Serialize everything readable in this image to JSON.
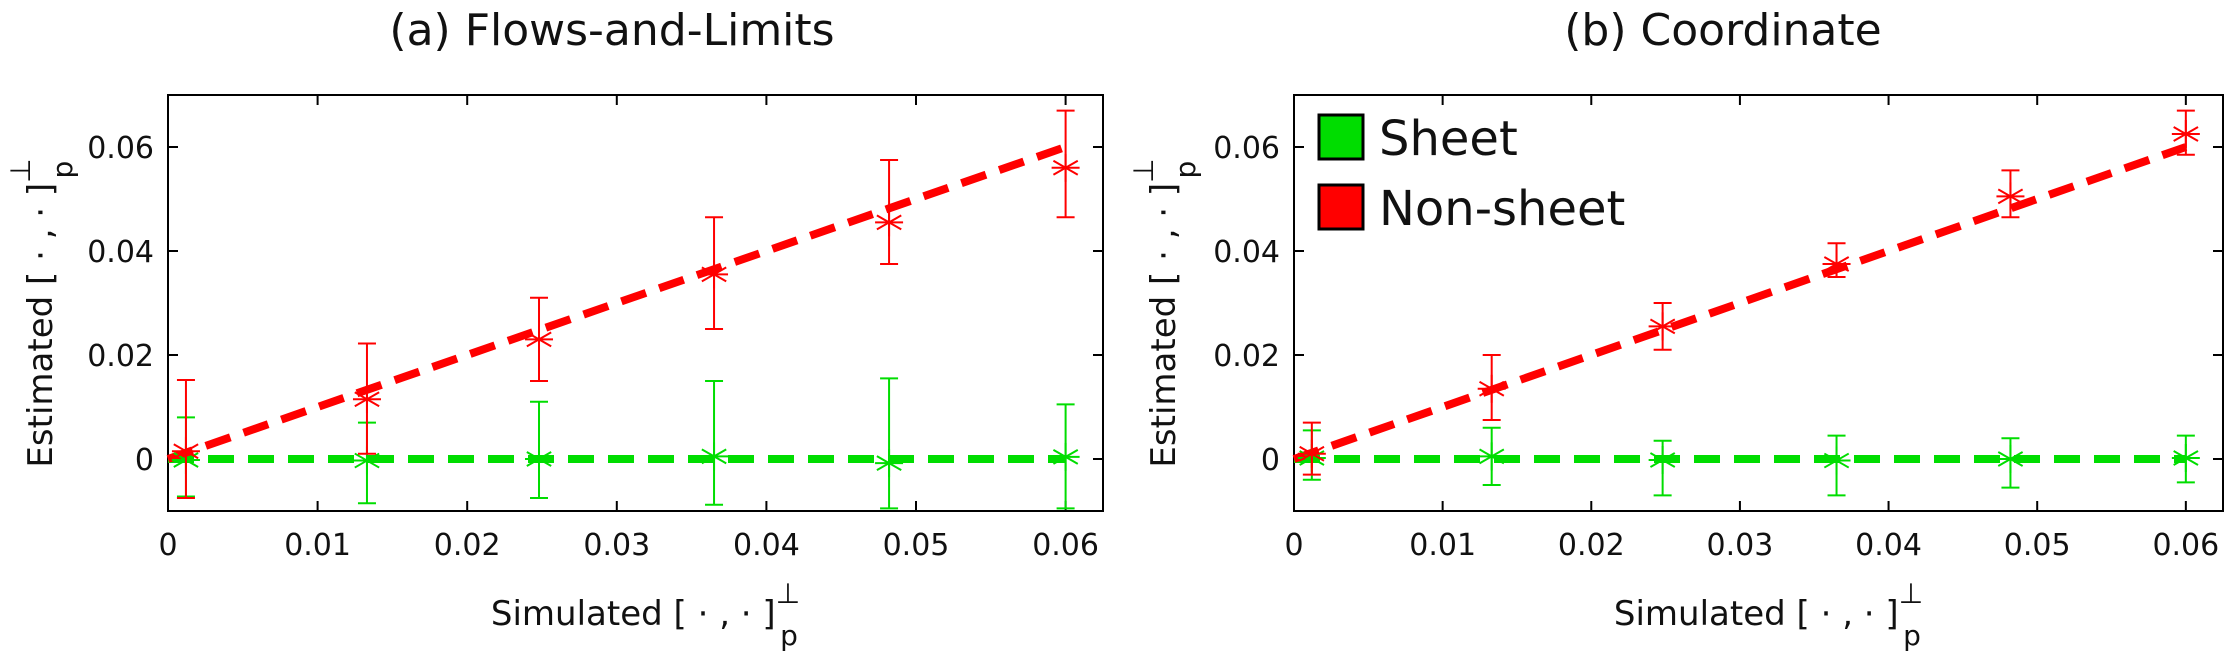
{
  "chart_data": [
    {
      "type": "scatter",
      "title": "(a) Flows-and-Limits",
      "xlabel": "Simulated [ · , · ]",
      "xlabel_sup": "⊥",
      "xlabel_sub": "p",
      "ylabel": "Estimated [ · , · ]",
      "ylabel_sup": "⊥",
      "ylabel_sub": "p",
      "xlim": [
        0,
        0.0625
      ],
      "ylim": [
        -0.01,
        0.07
      ],
      "xticks": [
        0,
        0.01,
        0.02,
        0.03,
        0.04,
        0.05,
        0.06
      ],
      "xtick_labels": [
        "0",
        "0.01",
        "0.02",
        "0.03",
        "0.04",
        "0.05",
        "0.06"
      ],
      "yticks": [
        0,
        0.02,
        0.04,
        0.06
      ],
      "ytick_labels": [
        "0",
        "0.02",
        "0.04",
        "0.06"
      ],
      "series": [
        {
          "name": "Sheet",
          "color": "#00dd00",
          "x": [
            0.0012,
            0.0133,
            0.0248,
            0.0365,
            0.0482,
            0.06
          ],
          "y": [
            -0.0002,
            -0.0003,
            0.0,
            0.0005,
            -0.0008,
            0.0004
          ],
          "err_low": [
            -0.0072,
            -0.0085,
            -0.0075,
            -0.0088,
            -0.0095,
            -0.0095
          ],
          "err_high": [
            0.008,
            0.007,
            0.011,
            0.015,
            0.0155,
            0.0105
          ],
          "fit": [
            [
              0,
              0
            ],
            [
              0.06,
              0
            ]
          ]
        },
        {
          "name": "Non-sheet",
          "color": "#ff0000",
          "x": [
            0.0012,
            0.0133,
            0.0248,
            0.0365,
            0.0482,
            0.06
          ],
          "y": [
            0.0015,
            0.0115,
            0.023,
            0.0355,
            0.0455,
            0.056
          ],
          "err_low": [
            -0.0075,
            0.001,
            0.015,
            0.025,
            0.0375,
            0.0465
          ],
          "err_high": [
            0.0152,
            0.0222,
            0.031,
            0.0465,
            0.0575,
            0.067
          ],
          "fit": [
            [
              0,
              0
            ],
            [
              0.06,
              0.06
            ]
          ]
        }
      ]
    },
    {
      "type": "scatter",
      "title": "(b) Coordinate",
      "xlabel": "Simulated [ · , · ]",
      "xlabel_sup": "⊥",
      "xlabel_sub": "p",
      "ylabel": "Estimated [ · , · ]",
      "ylabel_sup": "⊥",
      "ylabel_sub": "p",
      "xlim": [
        0,
        0.0625
      ],
      "ylim": [
        -0.01,
        0.07
      ],
      "xticks": [
        0,
        0.01,
        0.02,
        0.03,
        0.04,
        0.05,
        0.06
      ],
      "xtick_labels": [
        "0",
        "0.01",
        "0.02",
        "0.03",
        "0.04",
        "0.05",
        "0.06"
      ],
      "yticks": [
        0,
        0.02,
        0.04,
        0.06
      ],
      "ytick_labels": [
        "0",
        "0.02",
        "0.04",
        "0.06"
      ],
      "legend": {
        "placement": "top-left",
        "entries": [
          "Sheet",
          "Non-sheet"
        ]
      },
      "series": [
        {
          "name": "Sheet",
          "color": "#00dd00",
          "x": [
            0.0012,
            0.0133,
            0.0248,
            0.0365,
            0.0482,
            0.06
          ],
          "y": [
            0.0002,
            0.0005,
            -0.0002,
            -0.0003,
            0.0,
            0.0002
          ],
          "err_low": [
            -0.004,
            -0.005,
            -0.007,
            -0.007,
            -0.0055,
            -0.0045
          ],
          "err_high": [
            0.0055,
            0.006,
            0.0035,
            0.0045,
            0.004,
            0.0045
          ],
          "fit": [
            [
              0,
              0
            ],
            [
              0.06,
              0
            ]
          ]
        },
        {
          "name": "Non-sheet",
          "color": "#ff0000",
          "x": [
            0.0012,
            0.0133,
            0.0248,
            0.0365,
            0.0482,
            0.06
          ],
          "y": [
            0.001,
            0.0135,
            0.0255,
            0.0375,
            0.0505,
            0.0625
          ],
          "err_low": [
            -0.003,
            0.0075,
            0.021,
            0.035,
            0.0465,
            0.0585
          ],
          "err_high": [
            0.007,
            0.02,
            0.03,
            0.0415,
            0.0555,
            0.067
          ],
          "fit": [
            [
              0,
              0
            ],
            [
              0.06,
              0.06
            ]
          ]
        }
      ]
    }
  ]
}
